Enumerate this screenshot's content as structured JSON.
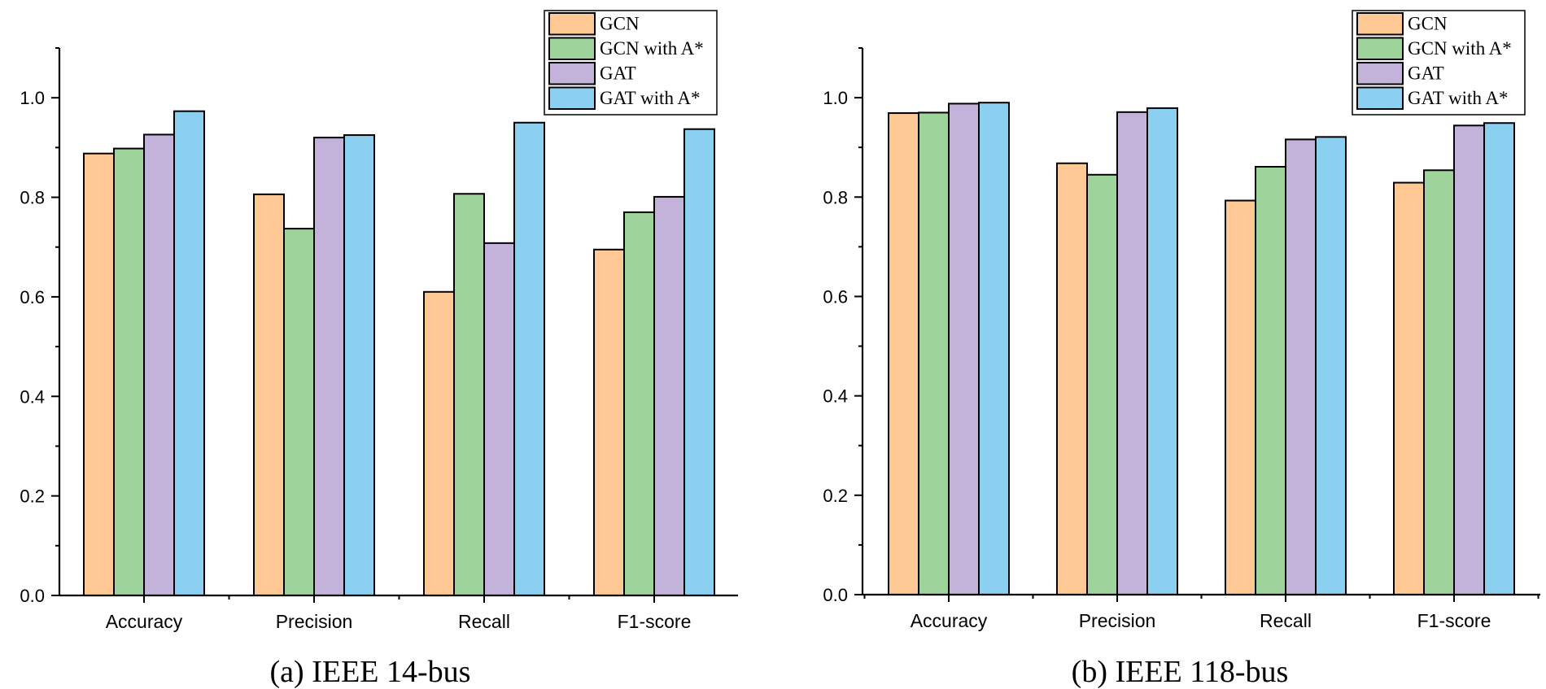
{
  "chart_data": [
    {
      "type": "bar",
      "title": "(a) IEEE 14-bus",
      "xlabel": "",
      "ylabel": "",
      "ylim": [
        0,
        1.1
      ],
      "yticks": [
        "0.0",
        "0.2",
        "0.4",
        "0.6",
        "0.8",
        "1.0"
      ],
      "categories": [
        "Accuracy",
        "Precision",
        "Recall",
        "F1-score"
      ],
      "legend_position": "top-right",
      "series": [
        {
          "name": "GCN",
          "color": "#FDC894",
          "values": [
            0.888,
            0.806,
            0.61,
            0.695
          ]
        },
        {
          "name": "GCN with A*",
          "color": "#9FD39C",
          "values": [
            0.898,
            0.737,
            0.807,
            0.77
          ]
        },
        {
          "name": "GAT",
          "color": "#C3B3DA",
          "values": [
            0.926,
            0.92,
            0.708,
            0.801
          ]
        },
        {
          "name": "GAT with A*",
          "color": "#8BD0F1",
          "values": [
            0.973,
            0.925,
            0.95,
            0.937
          ]
        }
      ]
    },
    {
      "type": "bar",
      "title": "(b) IEEE 118-bus",
      "xlabel": "",
      "ylabel": "",
      "ylim": [
        0,
        1.1
      ],
      "yticks": [
        "0.0",
        "0.2",
        "0.4",
        "0.6",
        "0.8",
        "1.0"
      ],
      "categories": [
        "Accuracy",
        "Precision",
        "Recall",
        "F1-score"
      ],
      "legend_position": "top-right",
      "series": [
        {
          "name": "GCN",
          "color": "#FDC894",
          "values": [
            0.969,
            0.868,
            0.793,
            0.829
          ]
        },
        {
          "name": "GCN with A*",
          "color": "#9FD39C",
          "values": [
            0.97,
            0.845,
            0.861,
            0.854
          ]
        },
        {
          "name": "GAT",
          "color": "#C3B3DA",
          "values": [
            0.988,
            0.971,
            0.916,
            0.944
          ]
        },
        {
          "name": "GAT with A*",
          "color": "#8BD0F1",
          "values": [
            0.99,
            0.979,
            0.921,
            0.949
          ]
        }
      ]
    }
  ]
}
